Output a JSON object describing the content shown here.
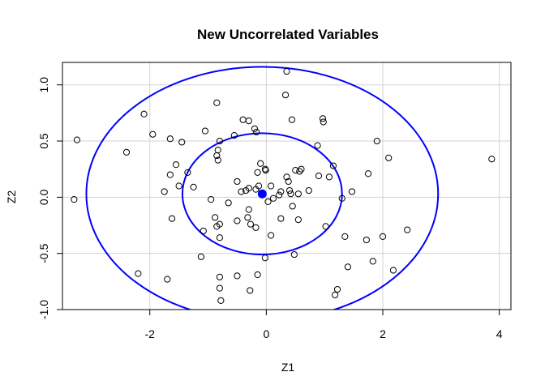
{
  "chart_data": {
    "type": "scatter",
    "title": "New Uncorrelated Variables",
    "xlabel": "Z1",
    "ylabel": "Z2",
    "xlim": [
      -3.5,
      4.2
    ],
    "ylim": [
      -1.0,
      1.2
    ],
    "x_ticks": [
      -2,
      0,
      2,
      4
    ],
    "x_tick_labels": [
      "-2",
      "0",
      "2",
      "4"
    ],
    "y_ticks": [
      -1.0,
      -0.5,
      0.0,
      0.5,
      1.0
    ],
    "y_tick_labels": [
      "-1.0",
      "-0.5",
      "0.0",
      "0.5",
      "1.0"
    ],
    "grid": true,
    "colors": {
      "ellipse": "#0000ff",
      "center": "#0000ff",
      "points": "#000000",
      "grid": "#d3d3d3"
    },
    "center": {
      "x": -0.07,
      "y": 0.03
    },
    "ellipses": [
      {
        "name": "inner",
        "cx": -0.07,
        "cy": 0.03,
        "rx": 1.37,
        "ry": 0.54
      },
      {
        "name": "outer",
        "cx": -0.07,
        "cy": 0.03,
        "rx": 3.02,
        "ry": 1.13
      }
    ],
    "points": [
      [
        0.35,
        1.12
      ],
      [
        0.33,
        0.91
      ],
      [
        -0.85,
        0.84
      ],
      [
        -2.1,
        0.74
      ],
      [
        -0.4,
        0.69
      ],
      [
        -0.3,
        0.68
      ],
      [
        0.44,
        0.69
      ],
      [
        0.97,
        0.7
      ],
      [
        0.98,
        0.67
      ],
      [
        -0.2,
        0.61
      ],
      [
        -0.17,
        0.58
      ],
      [
        -1.05,
        0.59
      ],
      [
        -1.95,
        0.56
      ],
      [
        -0.55,
        0.55
      ],
      [
        -3.25,
        0.51
      ],
      [
        -1.65,
        0.52
      ],
      [
        -1.45,
        0.49
      ],
      [
        -0.8,
        0.5
      ],
      [
        1.9,
        0.5
      ],
      [
        -2.4,
        0.4
      ],
      [
        -0.83,
        0.42
      ],
      [
        0.88,
        0.46
      ],
      [
        -0.85,
        0.37
      ],
      [
        -0.83,
        0.33
      ],
      [
        2.1,
        0.35
      ],
      [
        3.87,
        0.34
      ],
      [
        -1.55,
        0.29
      ],
      [
        1.15,
        0.28
      ],
      [
        -0.1,
        0.3
      ],
      [
        -0.02,
        0.25
      ],
      [
        -0.01,
        0.24
      ],
      [
        0.5,
        0.24
      ],
      [
        0.6,
        0.25
      ],
      [
        0.57,
        0.23
      ],
      [
        -1.35,
        0.22
      ],
      [
        -0.15,
        0.22
      ],
      [
        1.75,
        0.21
      ],
      [
        -1.65,
        0.2
      ],
      [
        0.35,
        0.18
      ],
      [
        0.9,
        0.19
      ],
      [
        1.08,
        0.18
      ],
      [
        -0.5,
        0.14
      ],
      [
        0.38,
        0.14
      ],
      [
        -1.5,
        0.1
      ],
      [
        -0.3,
        0.08
      ],
      [
        -0.13,
        0.1
      ],
      [
        0.08,
        0.1
      ],
      [
        -1.25,
        0.09
      ],
      [
        -0.18,
        0.07
      ],
      [
        -0.35,
        0.06
      ],
      [
        -0.43,
        0.05
      ],
      [
        0.4,
        0.06
      ],
      [
        -1.75,
        0.05
      ],
      [
        0.25,
        0.05
      ],
      [
        0.73,
        0.06
      ],
      [
        1.47,
        0.05
      ],
      [
        0.42,
        0.03
      ],
      [
        0.55,
        0.03
      ],
      [
        0.22,
        0.02
      ],
      [
        0.12,
        -0.01
      ],
      [
        1.3,
        -0.01
      ],
      [
        -0.95,
        -0.02
      ],
      [
        0.03,
        -0.04
      ],
      [
        -3.3,
        -0.02
      ],
      [
        -0.65,
        -0.05
      ],
      [
        0.45,
        -0.08
      ],
      [
        -0.3,
        -0.11
      ],
      [
        -0.88,
        -0.18
      ],
      [
        -0.32,
        -0.18
      ],
      [
        0.25,
        -0.19
      ],
      [
        0.55,
        -0.2
      ],
      [
        -0.5,
        -0.21
      ],
      [
        -1.62,
        -0.19
      ],
      [
        -0.8,
        -0.24
      ],
      [
        -0.85,
        -0.26
      ],
      [
        -0.27,
        -0.24
      ],
      [
        -0.18,
        -0.27
      ],
      [
        1.02,
        -0.26
      ],
      [
        2.42,
        -0.29
      ],
      [
        -1.08,
        -0.3
      ],
      [
        0.08,
        -0.34
      ],
      [
        -0.8,
        -0.36
      ],
      [
        1.35,
        -0.35
      ],
      [
        2.0,
        -0.35
      ],
      [
        1.72,
        -0.38
      ],
      [
        0.48,
        -0.51
      ],
      [
        -1.12,
        -0.53
      ],
      [
        -0.02,
        -0.54
      ],
      [
        1.83,
        -0.57
      ],
      [
        1.4,
        -0.62
      ],
      [
        2.18,
        -0.65
      ],
      [
        -2.2,
        -0.68
      ],
      [
        -0.5,
        -0.7
      ],
      [
        -0.8,
        -0.71
      ],
      [
        -0.15,
        -0.69
      ],
      [
        -1.7,
        -0.73
      ],
      [
        -0.8,
        -0.81
      ],
      [
        -0.28,
        -0.83
      ],
      [
        1.22,
        -0.82
      ],
      [
        1.18,
        -0.87
      ],
      [
        -0.78,
        -0.92
      ]
    ]
  }
}
